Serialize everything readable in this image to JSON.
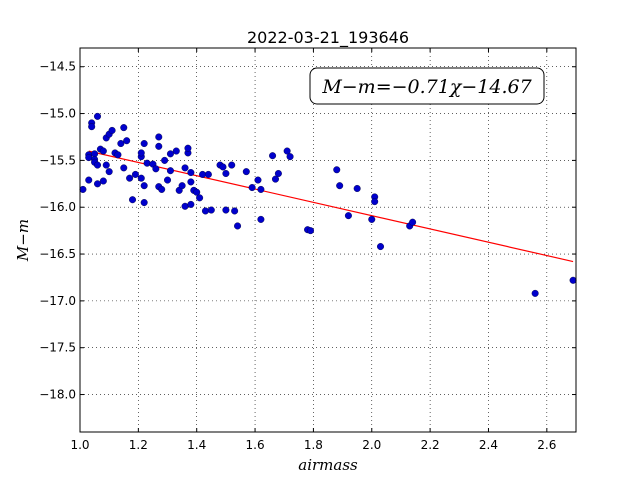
{
  "chart_data": {
    "type": "scatter",
    "title": "2022-03-21_193646",
    "xlabel": "airmass",
    "ylabel": "M−m",
    "xlim": [
      1.0,
      2.7
    ],
    "ylim": [
      -18.4,
      -14.3
    ],
    "y_inverted": true,
    "grid": true,
    "annotation": "M−m=−0.71χ−14.67",
    "x_ticks": [
      1.0,
      1.2,
      1.4,
      1.6,
      1.8,
      2.0,
      2.2,
      2.4,
      2.6
    ],
    "x_tick_labels": [
      "1.0",
      "1.2",
      "1.4",
      "1.6",
      "1.8",
      "2.0",
      "2.2",
      "2.4",
      "2.6"
    ],
    "y_ticks": [
      -14.5,
      -15.0,
      -15.5,
      -16.0,
      -16.5,
      -17.0,
      -17.5,
      -18.0
    ],
    "y_tick_labels": [
      "−14.5",
      "−15.0",
      "−15.5",
      "−16.0",
      "−16.5",
      "−17.0",
      "−17.5",
      "−18.0"
    ],
    "fit_line": {
      "slope": -0.71,
      "intercept": -14.67,
      "x_range": [
        1.03,
        2.69
      ]
    },
    "colors": {
      "points": "#0000cc",
      "fit": "#ff0000"
    },
    "points": [
      [
        1.01,
        -15.81
      ],
      [
        1.03,
        -15.71
      ],
      [
        1.03,
        -15.44
      ],
      [
        1.03,
        -15.47
      ],
      [
        1.04,
        -15.1
      ],
      [
        1.04,
        -15.14
      ],
      [
        1.05,
        -15.43
      ],
      [
        1.05,
        -15.49
      ],
      [
        1.05,
        -15.52
      ],
      [
        1.06,
        -15.55
      ],
      [
        1.06,
        -15.03
      ],
      [
        1.06,
        -15.75
      ],
      [
        1.07,
        -15.38
      ],
      [
        1.08,
        -15.4
      ],
      [
        1.08,
        -15.72
      ],
      [
        1.09,
        -15.55
      ],
      [
        1.09,
        -15.26
      ],
      [
        1.1,
        -15.62
      ],
      [
        1.1,
        -15.22
      ],
      [
        1.11,
        -15.18
      ],
      [
        1.12,
        -15.42
      ],
      [
        1.13,
        -15.44
      ],
      [
        1.14,
        -15.32
      ],
      [
        1.15,
        -15.58
      ],
      [
        1.15,
        -15.15
      ],
      [
        1.16,
        -15.29
      ],
      [
        1.17,
        -15.69
      ],
      [
        1.18,
        -15.92
      ],
      [
        1.19,
        -15.65
      ],
      [
        1.21,
        -15.69
      ],
      [
        1.21,
        -15.46
      ],
      [
        1.21,
        -15.42
      ],
      [
        1.22,
        -15.32
      ],
      [
        1.22,
        -15.77
      ],
      [
        1.22,
        -15.95
      ],
      [
        1.23,
        -15.53
      ],
      [
        1.25,
        -15.54
      ],
      [
        1.26,
        -15.59
      ],
      [
        1.27,
        -15.25
      ],
      [
        1.27,
        -15.35
      ],
      [
        1.27,
        -15.78
      ],
      [
        1.28,
        -15.81
      ],
      [
        1.29,
        -15.5
      ],
      [
        1.3,
        -15.71
      ],
      [
        1.31,
        -15.43
      ],
      [
        1.31,
        -15.61
      ],
      [
        1.33,
        -15.4
      ],
      [
        1.34,
        -15.82
      ],
      [
        1.35,
        -15.77
      ],
      [
        1.36,
        -15.58
      ],
      [
        1.36,
        -15.99
      ],
      [
        1.37,
        -15.42
      ],
      [
        1.37,
        -15.37
      ],
      [
        1.38,
        -15.63
      ],
      [
        1.38,
        -15.73
      ],
      [
        1.38,
        -15.97
      ],
      [
        1.39,
        -15.82
      ],
      [
        1.4,
        -15.84
      ],
      [
        1.41,
        -15.9
      ],
      [
        1.42,
        -15.65
      ],
      [
        1.43,
        -16.04
      ],
      [
        1.44,
        -15.65
      ],
      [
        1.45,
        -16.03
      ],
      [
        1.48,
        -15.55
      ],
      [
        1.49,
        -15.57
      ],
      [
        1.5,
        -15.64
      ],
      [
        1.5,
        -16.03
      ],
      [
        1.52,
        -15.55
      ],
      [
        1.53,
        -16.04
      ],
      [
        1.54,
        -16.2
      ],
      [
        1.57,
        -15.62
      ],
      [
        1.59,
        -15.79
      ],
      [
        1.61,
        -15.71
      ],
      [
        1.62,
        -15.81
      ],
      [
        1.62,
        -16.13
      ],
      [
        1.66,
        -15.45
      ],
      [
        1.67,
        -15.7
      ],
      [
        1.68,
        -15.64
      ],
      [
        1.71,
        -15.4
      ],
      [
        1.72,
        -15.46
      ],
      [
        1.78,
        -16.24
      ],
      [
        1.79,
        -16.25
      ],
      [
        1.88,
        -15.6
      ],
      [
        1.89,
        -15.77
      ],
      [
        1.92,
        -16.09
      ],
      [
        1.95,
        -15.8
      ],
      [
        2.0,
        -16.13
      ],
      [
        2.01,
        -15.89
      ],
      [
        2.01,
        -15.94
      ],
      [
        2.03,
        -16.42
      ],
      [
        2.13,
        -16.2
      ],
      [
        2.14,
        -16.16
      ],
      [
        2.56,
        -16.92
      ],
      [
        2.69,
        -16.78
      ]
    ]
  }
}
